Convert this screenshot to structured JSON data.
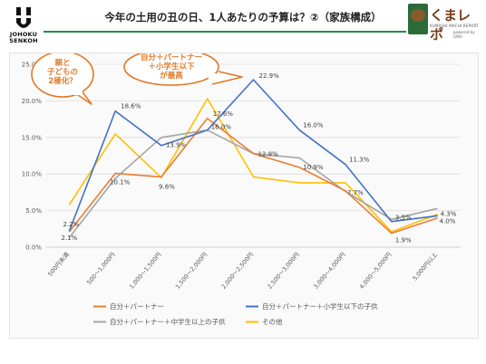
{
  "header": {
    "title": "今年の土用の丑の日、1人あたりの予算は？②（家族構成）",
    "company_logo_text": [
      "JOHOKU",
      "SENKOH"
    ],
    "brand_name": "くまレポ",
    "brand_sub": "KUMASHI MACHI REPORT",
    "brand_sub2": "powered by GMO"
  },
  "colors": {
    "accent_rule": "#1e8e4a",
    "callout": "#e07b2a"
  },
  "callouts": [
    {
      "lines": [
        "親と",
        "子どもの",
        "2極化？"
      ]
    },
    {
      "lines": [
        "自分＋パートナー",
        "＋小学生以下",
        "が最高"
      ]
    }
  ],
  "chart_data": {
    "type": "line",
    "categories": [
      "500円未満",
      "500～1,000円",
      "1,000～1,500円",
      "1,500～2,000円",
      "2,000～2,500円",
      "2,500～3,000円",
      "3,000～4,000円",
      "4,000～5,000円",
      "5,000円以上"
    ],
    "ylim": [
      0,
      25
    ],
    "yticks": [
      "0.0%",
      "5.0%",
      "10.0%",
      "15.0%",
      "20.0%",
      "25.0%"
    ],
    "grid": true,
    "legend_position": "bottom",
    "series": [
      {
        "name": "自分＋パートナー",
        "color": "#ed7d31",
        "values": [
          2.1,
          10.1,
          9.6,
          17.6,
          12.8,
          10.9,
          7.7,
          1.9,
          4.0
        ],
        "labels": [
          "2.1%",
          "10.1%",
          "9.6%",
          "17.6%",
          "12.8%",
          "10.9%",
          "7.7%",
          "1.9%",
          "4.0%"
        ]
      },
      {
        "name": "自分＋パートナー＋小学生以下の子供",
        "color": "#4472c4",
        "values": [
          2.2,
          18.6,
          13.9,
          16.0,
          22.9,
          16.0,
          11.3,
          3.5,
          4.3
        ],
        "labels": [
          "2.2%",
          "18.6%",
          "13.9%",
          "16.0%",
          "22.9%",
          "16.0%",
          "11.3%",
          "3.5%",
          "4.3%"
        ]
      },
      {
        "name": "自分＋パートナー＋中学生以上の子供",
        "color": "#a5a5a5",
        "values": [
          1.3,
          9.4,
          15.0,
          16.0,
          12.8,
          12.2,
          7.6,
          3.8,
          5.3
        ]
      },
      {
        "name": "その他",
        "color": "#ffc000",
        "values": [
          5.8,
          15.5,
          9.5,
          20.3,
          9.6,
          8.8,
          8.8,
          2.1,
          4.5
        ]
      }
    ]
  }
}
